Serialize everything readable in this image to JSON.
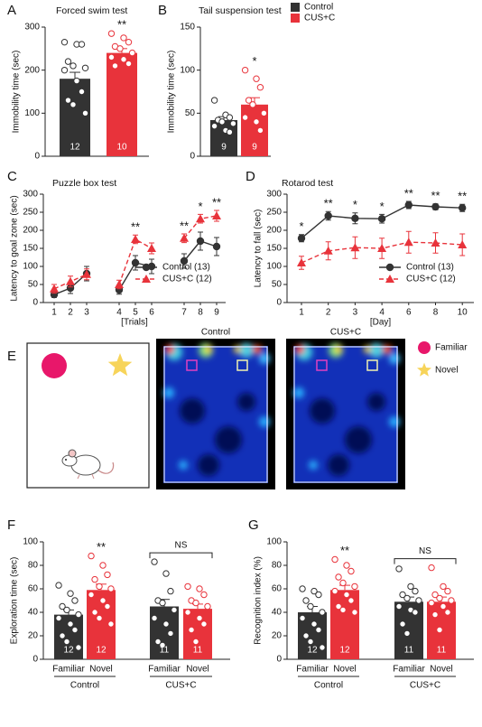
{
  "legend": [
    {
      "name": "Control",
      "color": "#333333"
    },
    {
      "name": "CUS+C",
      "color": "#e8333b"
    }
  ],
  "chart_data": [
    {
      "type": "bar",
      "panel": "A",
      "title": "Forced swim test",
      "ylabel": "Immobility time (sec)",
      "ylim": [
        0,
        300
      ],
      "yticks": [
        0,
        100,
        200,
        300
      ],
      "colors": [
        "#333333",
        "#e8333b"
      ],
      "values": [
        180,
        240
      ],
      "errors": [
        15,
        10
      ],
      "n": [
        12,
        10
      ],
      "annotations": [
        null,
        "**"
      ],
      "points": [
        [
          265,
          260,
          260,
          220,
          210,
          205,
          200,
          175,
          150,
          130,
          120,
          100
        ],
        [
          285,
          275,
          265,
          255,
          250,
          240,
          230,
          225,
          215,
          210
        ]
      ]
    },
    {
      "type": "bar",
      "panel": "B",
      "title": "Tail suspension test",
      "ylabel": "Immobility time (sec)",
      "ylim": [
        0,
        150
      ],
      "yticks": [
        0,
        50,
        100,
        150
      ],
      "colors": [
        "#333333",
        "#e8333b"
      ],
      "values": [
        42,
        60
      ],
      "errors": [
        4,
        8
      ],
      "n": [
        9,
        9
      ],
      "annotations": [
        null,
        "*"
      ],
      "points": [
        [
          65,
          48,
          45,
          42,
          40,
          38,
          35,
          30,
          28
        ],
        [
          100,
          90,
          80,
          65,
          60,
          50,
          45,
          40,
          30
        ]
      ]
    },
    {
      "type": "line",
      "panel": "C",
      "title": "Puzzle box test",
      "ylabel": "Latency to goal zone (sec)",
      "xlabel": "[Trials]",
      "ylim": [
        0,
        300
      ],
      "yticks": [
        0,
        50,
        100,
        150,
        200,
        250,
        300
      ],
      "legend": "lower right",
      "categories": [
        "1",
        "2",
        "3",
        null,
        "4",
        "5",
        "6",
        null,
        "7",
        "8",
        "9"
      ],
      "series": [
        {
          "name": "Control (13)",
          "color": "#333333",
          "dashed": false,
          "marker": "circle",
          "values": [
            22,
            40,
            80,
            null,
            35,
            110,
            100,
            null,
            115,
            170,
            155
          ],
          "errors": [
            8,
            15,
            20,
            null,
            12,
            20,
            20,
            null,
            20,
            25,
            25
          ]
        },
        {
          "name": "CUS+C (12)",
          "color": "#e8333b",
          "dashed": true,
          "marker": "triangle",
          "values": [
            38,
            58,
            78,
            null,
            50,
            175,
            150,
            null,
            178,
            232,
            240
          ],
          "errors": [
            12,
            15,
            15,
            null,
            12,
            12,
            15,
            null,
            12,
            12,
            15
          ]
        }
      ],
      "annotations": [
        null,
        null,
        null,
        null,
        null,
        "**",
        null,
        null,
        "**",
        "*",
        "**"
      ]
    },
    {
      "type": "line",
      "panel": "D",
      "title": "Rotarod test",
      "ylabel": "Latency to fall (sec)",
      "xlabel": "[Day]",
      "ylim": [
        0,
        300
      ],
      "yticks": [
        0,
        50,
        100,
        150,
        200,
        250,
        300
      ],
      "legend": "lower right",
      "categories": [
        "1",
        "2",
        "3",
        "4",
        "6",
        "8",
        "10"
      ],
      "series": [
        {
          "name": "Control (13)",
          "color": "#333333",
          "dashed": false,
          "marker": "circle",
          "values": [
            178,
            240,
            233,
            232,
            270,
            265,
            262
          ],
          "errors": [
            10,
            12,
            15,
            12,
            10,
            8,
            10
          ]
        },
        {
          "name": "CUS+C (12)",
          "color": "#e8333b",
          "dashed": true,
          "marker": "triangle",
          "values": [
            110,
            143,
            152,
            150,
            167,
            165,
            160
          ],
          "errors": [
            18,
            25,
            30,
            28,
            30,
            28,
            30
          ]
        }
      ],
      "annotations": [
        "*",
        "**",
        "*",
        "*",
        "**",
        "**",
        "**"
      ]
    },
    {
      "type": "bar",
      "panel": "F",
      "ylabel": "Exploration time (sec)",
      "ylim": [
        0,
        100
      ],
      "yticks": [
        0,
        20,
        40,
        60,
        80,
        100
      ],
      "colors": [
        "#333333",
        "#e8333b",
        "#333333",
        "#e8333b"
      ],
      "categories": [
        "Familiar",
        "Novel",
        "Familiar",
        "Novel"
      ],
      "groups": [
        "Control",
        "CUS+C"
      ],
      "values": [
        38,
        59,
        45,
        43
      ],
      "errors": [
        4,
        5,
        6,
        4
      ],
      "n": [
        12,
        12,
        11,
        11
      ],
      "annotations": [
        null,
        "**",
        null,
        null
      ],
      "group_annotations": [
        null,
        "NS"
      ],
      "points": [
        [
          63,
          56,
          50,
          45,
          42,
          38,
          35,
          30,
          25,
          20,
          15,
          10
        ],
        [
          88,
          80,
          72,
          68,
          62,
          60,
          55,
          50,
          45,
          40,
          35,
          30
        ],
        [
          83,
          73,
          58,
          50,
          48,
          42,
          35,
          30,
          22,
          15,
          12
        ],
        [
          62,
          60,
          55,
          50,
          48,
          45,
          40,
          35,
          30,
          25,
          15
        ]
      ]
    },
    {
      "type": "bar",
      "panel": "G",
      "ylabel": "Recognition index (%)",
      "ylim": [
        0,
        100
      ],
      "yticks": [
        0,
        20,
        40,
        60,
        80,
        100
      ],
      "colors": [
        "#333333",
        "#e8333b",
        "#333333",
        "#e8333b"
      ],
      "categories": [
        "Familiar",
        "Novel",
        "Familiar",
        "Novel"
      ],
      "groups": [
        "Control",
        "CUS+C"
      ],
      "values": [
        40,
        59,
        49,
        49
      ],
      "errors": [
        5,
        4,
        4,
        4
      ],
      "n": [
        12,
        12,
        11,
        11
      ],
      "annotations": [
        null,
        "**",
        null,
        null
      ],
      "group_annotations": [
        null,
        "NS"
      ],
      "points": [
        [
          60,
          58,
          55,
          50,
          45,
          40,
          35,
          30,
          25,
          20,
          15,
          10
        ],
        [
          85,
          80,
          75,
          70,
          65,
          62,
          58,
          55,
          50,
          45,
          42,
          40
        ],
        [
          77,
          62,
          58,
          55,
          52,
          50,
          45,
          42,
          40,
          30,
          22
        ],
        [
          78,
          62,
          58,
          55,
          52,
          50,
          48,
          45,
          40,
          38,
          25
        ]
      ]
    }
  ],
  "diagram": {
    "panel": "E",
    "heatmap_titles": [
      "Control",
      "CUS+C"
    ],
    "legend": [
      "Familiar",
      "Novel"
    ]
  }
}
